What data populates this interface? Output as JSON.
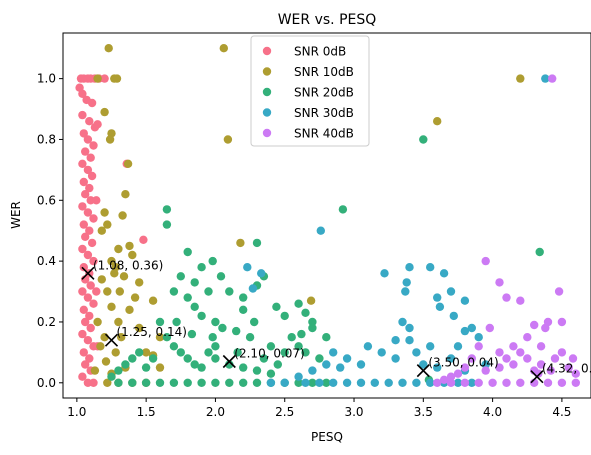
{
  "chart_data": {
    "type": "scatter",
    "title": "WER vs. PESQ",
    "xlabel": "PESQ",
    "ylabel": "WER",
    "xlim": [
      0.9,
      4.71
    ],
    "ylim": [
      -0.05,
      1.15
    ],
    "xticks": [
      1.0,
      1.5,
      2.0,
      2.5,
      3.0,
      3.5,
      4.0,
      4.5
    ],
    "xtick_labels": [
      "1.0",
      "1.5",
      "2.0",
      "2.5",
      "3.0",
      "3.5",
      "4.0",
      "4.5"
    ],
    "yticks": [
      0.0,
      0.2,
      0.4,
      0.6,
      0.8,
      1.0
    ],
    "ytick_labels": [
      "0.0",
      "0.2",
      "0.4",
      "0.6",
      "0.8",
      "1.0"
    ],
    "grid": false,
    "legend": {
      "placement": "top-center"
    },
    "series": [
      {
        "name": "SNR 0dB",
        "color": "#f77189",
        "points": [
          [
            1.03,
            1.0
          ],
          [
            1.05,
            1.0
          ],
          [
            1.08,
            1.0
          ],
          [
            1.1,
            1.0
          ],
          [
            1.13,
            1.0
          ],
          [
            1.16,
            1.0
          ],
          [
            1.04,
            0.95
          ],
          [
            1.07,
            0.93
          ],
          [
            1.11,
            0.92
          ],
          [
            1.04,
            0.88
          ],
          [
            1.09,
            0.86
          ],
          [
            1.13,
            0.84
          ],
          [
            1.05,
            0.82
          ],
          [
            1.08,
            0.8
          ],
          [
            1.12,
            0.78
          ],
          [
            1.06,
            0.76
          ],
          [
            1.1,
            0.74
          ],
          [
            1.04,
            0.72
          ],
          [
            1.08,
            0.7
          ],
          [
            1.11,
            0.68
          ],
          [
            1.05,
            0.66
          ],
          [
            1.09,
            0.64
          ],
          [
            1.06,
            0.62
          ],
          [
            1.1,
            0.6
          ],
          [
            1.04,
            0.58
          ],
          [
            1.08,
            0.56
          ],
          [
            1.12,
            0.54
          ],
          [
            1.05,
            0.52
          ],
          [
            1.09,
            0.5
          ],
          [
            1.06,
            0.48
          ],
          [
            1.11,
            0.46
          ],
          [
            1.04,
            0.44
          ],
          [
            1.08,
            0.42
          ],
          [
            1.12,
            0.4
          ],
          [
            1.05,
            0.38
          ],
          [
            1.09,
            0.36
          ],
          [
            1.06,
            0.34
          ],
          [
            1.1,
            0.32
          ],
          [
            1.04,
            0.3
          ],
          [
            1.08,
            0.28
          ],
          [
            1.12,
            0.26
          ],
          [
            1.05,
            0.24
          ],
          [
            1.09,
            0.22
          ],
          [
            1.06,
            0.2
          ],
          [
            1.1,
            0.18
          ],
          [
            1.04,
            0.16
          ],
          [
            1.08,
            0.14
          ],
          [
            1.12,
            0.12
          ],
          [
            1.05,
            0.1
          ],
          [
            1.09,
            0.08
          ],
          [
            1.06,
            0.06
          ],
          [
            1.1,
            0.04
          ],
          [
            1.04,
            0.02
          ],
          [
            1.08,
            0.0
          ],
          [
            1.12,
            0.0
          ],
          [
            1.15,
            0.85
          ],
          [
            1.14,
            0.6
          ],
          [
            1.14,
            0.3
          ],
          [
            1.15,
            0.12
          ],
          [
            1.48,
            0.47
          ],
          [
            1.36,
            0.72
          ],
          [
            1.2,
            1.0
          ],
          [
            1.02,
            0.97
          ]
        ]
      },
      {
        "name": "SNR 10dB",
        "color": "#ae9d31",
        "points": [
          [
            1.23,
            1.1
          ],
          [
            1.27,
            1.0
          ],
          [
            1.29,
            1.0
          ],
          [
            1.25,
            0.82
          ],
          [
            1.2,
            0.89
          ],
          [
            1.15,
            1.0
          ],
          [
            1.24,
            0.8
          ],
          [
            1.37,
            0.72
          ],
          [
            1.35,
            0.62
          ],
          [
            1.38,
            0.45
          ],
          [
            1.4,
            0.42
          ],
          [
            1.33,
            0.55
          ],
          [
            1.3,
            0.44
          ],
          [
            1.28,
            0.38
          ],
          [
            1.25,
            0.4
          ],
          [
            1.2,
            0.56
          ],
          [
            1.18,
            0.5
          ],
          [
            1.22,
            0.52
          ],
          [
            1.27,
            0.36
          ],
          [
            1.31,
            0.3
          ],
          [
            1.34,
            0.35
          ],
          [
            1.22,
            0.3
          ],
          [
            1.18,
            0.34
          ],
          [
            1.25,
            0.25
          ],
          [
            1.3,
            0.2
          ],
          [
            1.15,
            0.2
          ],
          [
            1.2,
            0.15
          ],
          [
            1.28,
            0.1
          ],
          [
            1.35,
            0.05
          ],
          [
            1.22,
            0.0
          ],
          [
            1.3,
            0.0
          ],
          [
            1.4,
            0.0
          ],
          [
            1.5,
            0.0
          ],
          [
            1.55,
            0.27
          ],
          [
            1.45,
            0.33
          ],
          [
            1.42,
            0.28
          ],
          [
            1.38,
            0.24
          ],
          [
            1.32,
            0.15
          ],
          [
            1.45,
            0.18
          ],
          [
            1.5,
            0.1
          ],
          [
            1.55,
            0.09
          ],
          [
            1.6,
            0.05
          ],
          [
            1.6,
            0.15
          ],
          [
            2.06,
            1.1
          ],
          [
            2.09,
            0.8
          ],
          [
            2.69,
            0.27
          ],
          [
            3.6,
            0.86
          ],
          [
            4.2,
            1.0
          ],
          [
            2.18,
            0.46
          ],
          [
            1.17,
            0.12
          ],
          [
            1.21,
            0.07
          ],
          [
            1.25,
            0.03
          ],
          [
            1.13,
            0.04
          ]
        ]
      },
      {
        "name": "SNR 20dB",
        "color": "#33b07a",
        "points": [
          [
            1.65,
            0.57
          ],
          [
            1.65,
            0.52
          ],
          [
            1.8,
            0.43
          ],
          [
            1.9,
            0.38
          ],
          [
            1.98,
            0.4
          ],
          [
            2.04,
            0.35
          ],
          [
            2.3,
            0.46
          ],
          [
            2.92,
            0.57
          ],
          [
            3.5,
            0.8
          ],
          [
            4.34,
            0.43
          ],
          [
            1.7,
            0.3
          ],
          [
            1.75,
            0.35
          ],
          [
            1.85,
            0.33
          ],
          [
            1.95,
            0.3
          ],
          [
            2.1,
            0.3
          ],
          [
            2.2,
            0.28
          ],
          [
            2.3,
            0.32
          ],
          [
            2.35,
            0.35
          ],
          [
            2.5,
            0.22
          ],
          [
            2.6,
            0.26
          ],
          [
            2.65,
            0.23
          ],
          [
            2.7,
            0.2
          ],
          [
            2.8,
            0.15
          ],
          [
            1.8,
            0.28
          ],
          [
            1.85,
            0.25
          ],
          [
            1.9,
            0.22
          ],
          [
            2.0,
            0.2
          ],
          [
            2.05,
            0.18
          ],
          [
            2.15,
            0.17
          ],
          [
            2.25,
            0.15
          ],
          [
            2.4,
            0.12
          ],
          [
            2.5,
            0.1
          ],
          [
            2.55,
            0.15
          ],
          [
            2.6,
            0.12
          ],
          [
            2.65,
            0.1
          ],
          [
            2.7,
            0.18
          ],
          [
            2.75,
            0.08
          ],
          [
            1.6,
            0.2
          ],
          [
            1.65,
            0.15
          ],
          [
            1.7,
            0.12
          ],
          [
            1.75,
            0.1
          ],
          [
            1.8,
            0.08
          ],
          [
            1.85,
            0.06
          ],
          [
            1.9,
            0.05
          ],
          [
            1.95,
            0.1
          ],
          [
            2.0,
            0.08
          ],
          [
            2.1,
            0.06
          ],
          [
            2.2,
            0.05
          ],
          [
            2.3,
            0.04
          ],
          [
            2.4,
            0.03
          ],
          [
            2.0,
            0.12
          ],
          [
            1.55,
            0.08
          ],
          [
            1.5,
            0.05
          ],
          [
            1.45,
            0.1
          ],
          [
            1.4,
            0.08
          ],
          [
            1.35,
            0.06
          ],
          [
            1.3,
            0.04
          ],
          [
            1.25,
            0.02
          ],
          [
            1.3,
            0.0
          ],
          [
            1.4,
            0.0
          ],
          [
            1.5,
            0.0
          ],
          [
            1.6,
            0.0
          ],
          [
            1.7,
            0.0
          ],
          [
            1.8,
            0.0
          ],
          [
            1.9,
            0.0
          ],
          [
            2.0,
            0.0
          ],
          [
            2.1,
            0.0
          ],
          [
            2.2,
            0.0
          ],
          [
            2.3,
            0.0
          ],
          [
            2.4,
            0.0
          ],
          [
            2.5,
            0.0
          ],
          [
            2.6,
            0.0
          ],
          [
            2.7,
            0.0
          ],
          [
            2.8,
            0.0
          ],
          [
            2.2,
            0.24
          ],
          [
            2.28,
            0.2
          ],
          [
            2.44,
            0.25
          ],
          [
            1.72,
            0.2
          ],
          [
            2.62,
            0.16
          ],
          [
            2.35,
            0.08
          ],
          [
            2.45,
            0.06
          ],
          [
            2.16,
            0.1
          ],
          [
            1.98,
            0.15
          ],
          [
            1.83,
            0.16
          ],
          [
            3.54,
            0.01
          ]
        ]
      },
      {
        "name": "SNR 30dB",
        "color": "#38a9c5",
        "points": [
          [
            2.23,
            0.38
          ],
          [
            2.33,
            0.36
          ],
          [
            2.27,
            0.31
          ],
          [
            2.76,
            0.5
          ],
          [
            3.22,
            0.36
          ],
          [
            3.4,
            0.38
          ],
          [
            3.55,
            0.38
          ],
          [
            3.38,
            0.33
          ],
          [
            3.37,
            0.3
          ],
          [
            3.6,
            0.28
          ],
          [
            3.65,
            0.36
          ],
          [
            3.7,
            0.3
          ],
          [
            3.62,
            0.25
          ],
          [
            3.72,
            0.22
          ],
          [
            3.8,
            0.27
          ],
          [
            3.85,
            0.18
          ],
          [
            3.9,
            0.15
          ],
          [
            3.75,
            0.12
          ],
          [
            3.55,
            0.12
          ],
          [
            3.4,
            0.14
          ],
          [
            3.35,
            0.2
          ],
          [
            3.45,
            0.1
          ],
          [
            3.3,
            0.08
          ],
          [
            3.2,
            0.1
          ],
          [
            3.1,
            0.12
          ],
          [
            2.95,
            0.08
          ],
          [
            2.85,
            0.1
          ],
          [
            2.9,
            0.05
          ],
          [
            2.8,
            0.06
          ],
          [
            2.7,
            0.04
          ],
          [
            3.05,
            0.06
          ],
          [
            3.5,
            0.06
          ],
          [
            3.6,
            0.05
          ],
          [
            3.7,
            0.08
          ],
          [
            3.8,
            0.04
          ],
          [
            3.95,
            0.06
          ],
          [
            2.6,
            0.02
          ],
          [
            2.65,
            0.0
          ],
          [
            2.75,
            0.0
          ],
          [
            2.85,
            0.0
          ],
          [
            2.95,
            0.0
          ],
          [
            3.05,
            0.0
          ],
          [
            3.15,
            0.0
          ],
          [
            3.25,
            0.0
          ],
          [
            3.35,
            0.0
          ],
          [
            3.45,
            0.0
          ],
          [
            3.55,
            0.0
          ],
          [
            3.65,
            0.0
          ],
          [
            3.75,
            0.0
          ],
          [
            3.85,
            0.0
          ],
          [
            2.4,
            0.0
          ],
          [
            2.5,
            0.0
          ],
          [
            4.38,
            1.0
          ],
          [
            3.8,
            0.17
          ],
          [
            3.4,
            0.18
          ],
          [
            3.3,
            0.14
          ]
        ]
      },
      {
        "name": "SNR 40dB",
        "color": "#cc7af4",
        "points": [
          [
            4.43,
            1.0
          ],
          [
            3.95,
            0.4
          ],
          [
            4.05,
            0.33
          ],
          [
            4.2,
            0.27
          ],
          [
            4.1,
            0.28
          ],
          [
            4.48,
            0.3
          ],
          [
            4.4,
            0.2
          ],
          [
            4.3,
            0.19
          ],
          [
            4.25,
            0.15
          ],
          [
            4.15,
            0.12
          ],
          [
            4.05,
            0.1
          ],
          [
            3.98,
            0.18
          ],
          [
            3.9,
            0.12
          ],
          [
            3.85,
            0.08
          ],
          [
            3.8,
            0.05
          ],
          [
            3.75,
            0.03
          ],
          [
            3.7,
            0.02
          ],
          [
            3.65,
            0.01
          ],
          [
            3.6,
            0.0
          ],
          [
            3.7,
            0.0
          ],
          [
            3.8,
            0.0
          ],
          [
            3.9,
            0.0
          ],
          [
            4.0,
            0.0
          ],
          [
            4.1,
            0.0
          ],
          [
            4.2,
            0.0
          ],
          [
            4.3,
            0.0
          ],
          [
            4.4,
            0.0
          ],
          [
            4.5,
            0.0
          ],
          [
            4.6,
            0.0
          ],
          [
            4.5,
            0.1
          ],
          [
            4.55,
            0.05
          ],
          [
            4.45,
            0.08
          ],
          [
            4.35,
            0.06
          ],
          [
            4.25,
            0.08
          ],
          [
            4.15,
            0.06
          ],
          [
            4.05,
            0.05
          ],
          [
            3.95,
            0.04
          ],
          [
            4.58,
            0.08
          ],
          [
            4.42,
            0.04
          ],
          [
            4.33,
            0.03
          ],
          [
            4.38,
            0.18
          ],
          [
            4.5,
            0.2
          ],
          [
            4.35,
            0.12
          ],
          [
            4.6,
            0.03
          ],
          [
            4.2,
            0.1
          ],
          [
            4.1,
            0.08
          ],
          [
            4.3,
            0.04
          ]
        ]
      }
    ],
    "markers": [
      {
        "x": 1.08,
        "y": 0.36,
        "label": "(1.08, 0.36)"
      },
      {
        "x": 1.25,
        "y": 0.14,
        "label": "(1.25, 0.14)"
      },
      {
        "x": 2.1,
        "y": 0.07,
        "label": "(2.10, 0.07)"
      },
      {
        "x": 3.5,
        "y": 0.04,
        "label": "(3.50, 0.04)"
      },
      {
        "x": 4.32,
        "y": 0.02,
        "label": "(4.32, 0.02)"
      }
    ]
  }
}
